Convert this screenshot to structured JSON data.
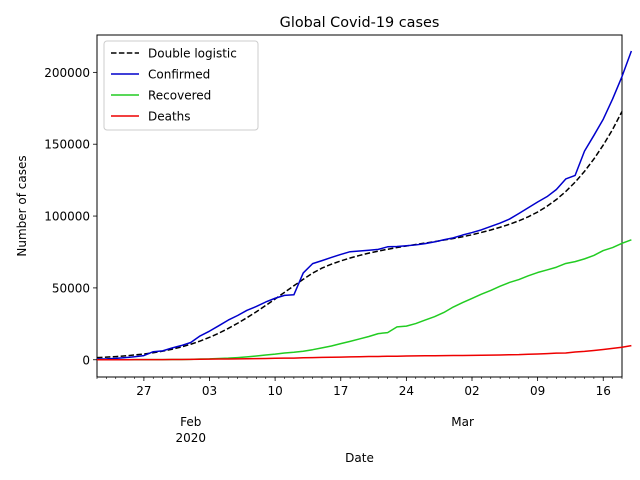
{
  "chart_data": {
    "type": "line",
    "title": "Global Covid-19 cases",
    "xlabel": "Date",
    "ylabel": "Number of cases",
    "x_start": "2020-01-22",
    "xlim": [
      "2020-01-22",
      "2020-03-18"
    ],
    "ylim": [
      -12000,
      226000
    ],
    "x_ticks": [
      {
        "date": "2020-01-27",
        "label": "27"
      },
      {
        "date": "2020-02-03",
        "label": "03"
      },
      {
        "date": "2020-02-10",
        "label": "10"
      },
      {
        "date": "2020-02-17",
        "label": "17"
      },
      {
        "date": "2020-02-24",
        "label": "24"
      },
      {
        "date": "2020-03-02",
        "label": "02"
      },
      {
        "date": "2020-03-09",
        "label": "09"
      },
      {
        "date": "2020-03-16",
        "label": "16"
      }
    ],
    "month_labels": [
      {
        "date": "2020-02-01",
        "label": "Feb",
        "sublabel": "2020"
      },
      {
        "date": "2020-03-01",
        "label": "Mar",
        "sublabel": ""
      }
    ],
    "y_ticks": [
      0,
      50000,
      100000,
      150000,
      200000
    ],
    "y_tick_labels": [
      "0",
      "50000",
      "100000",
      "150000",
      "200000"
    ],
    "legend_position": "top-left",
    "series": [
      {
        "name": "Double logistic",
        "color": "#000000",
        "style": "dashed",
        "values": [
          1500,
          1800,
          2200,
          2700,
          3300,
          4000,
          4900,
          6000,
          7300,
          8900,
          10800,
          13000,
          15600,
          18500,
          21800,
          25400,
          29300,
          33400,
          37800,
          42300,
          46900,
          51500,
          56000,
          60300,
          63800,
          66500,
          68800,
          70800,
          72600,
          74200,
          75600,
          76900,
          78100,
          79200,
          80200,
          81200,
          82200,
          83300,
          84400,
          85600,
          87000,
          88600,
          90300,
          92200,
          94300,
          96700,
          99500,
          102800,
          106800,
          111500,
          117100,
          123600,
          131100,
          139700,
          149400,
          160300,
          172800
        ]
      },
      {
        "name": "Confirmed",
        "color": "#0000cc",
        "style": "solid",
        "values": [
          550,
          650,
          950,
          1450,
          2100,
          2900,
          5600,
          6200,
          8200,
          9900,
          12000,
          16600,
          19900,
          23700,
          27600,
          30800,
          34400,
          37100,
          40200,
          42800,
          44800,
          45200,
          60400,
          66900,
          69000,
          71200,
          73300,
          75200,
          75700,
          76200,
          76800,
          78600,
          78800,
          79300,
          79900,
          80800,
          82000,
          83500,
          84800,
          86800,
          88500,
          90400,
          92800,
          95100,
          97900,
          101800,
          105800,
          109800,
          113500,
          118500,
          125800,
          128300,
          145200,
          156100,
          167400,
          181500,
          197100,
          214900
        ]
      },
      {
        "name": "Recovered",
        "color": "#22cc22",
        "style": "solid",
        "values": [
          30,
          30,
          40,
          40,
          60,
          60,
          110,
          130,
          140,
          220,
          280,
          530,
          640,
          900,
          1100,
          1500,
          2000,
          2600,
          3300,
          3900,
          4700,
          5200,
          5900,
          7000,
          8300,
          9600,
          11200,
          12800,
          14500,
          16200,
          18200,
          18900,
          22900,
          23400,
          25200,
          27600,
          30000,
          32900,
          36700,
          39800,
          42700,
          45600,
          48200,
          51200,
          53800,
          55800,
          58400,
          60700,
          62500,
          64400,
          67000,
          68300,
          70200,
          72600,
          76000,
          78100,
          81000,
          83500
        ]
      },
      {
        "name": "Deaths",
        "color": "#ee0000",
        "style": "solid",
        "values": [
          17,
          18,
          26,
          42,
          56,
          82,
          131,
          133,
          171,
          213,
          259,
          362,
          426,
          492,
          564,
          634,
          719,
          806,
          906,
          1013,
          1113,
          1118,
          1371,
          1523,
          1666,
          1770,
          1868,
          2007,
          2122,
          2247,
          2251,
          2458,
          2469,
          2629,
          2708,
          2770,
          2814,
          2872,
          2941,
          2996,
          3085,
          3160,
          3254,
          3348,
          3460,
          3558,
          3803,
          3996,
          4262,
          4615,
          4720,
          5404,
          5819,
          6440,
          7126,
          7905,
          8733,
          9867
        ]
      }
    ]
  }
}
